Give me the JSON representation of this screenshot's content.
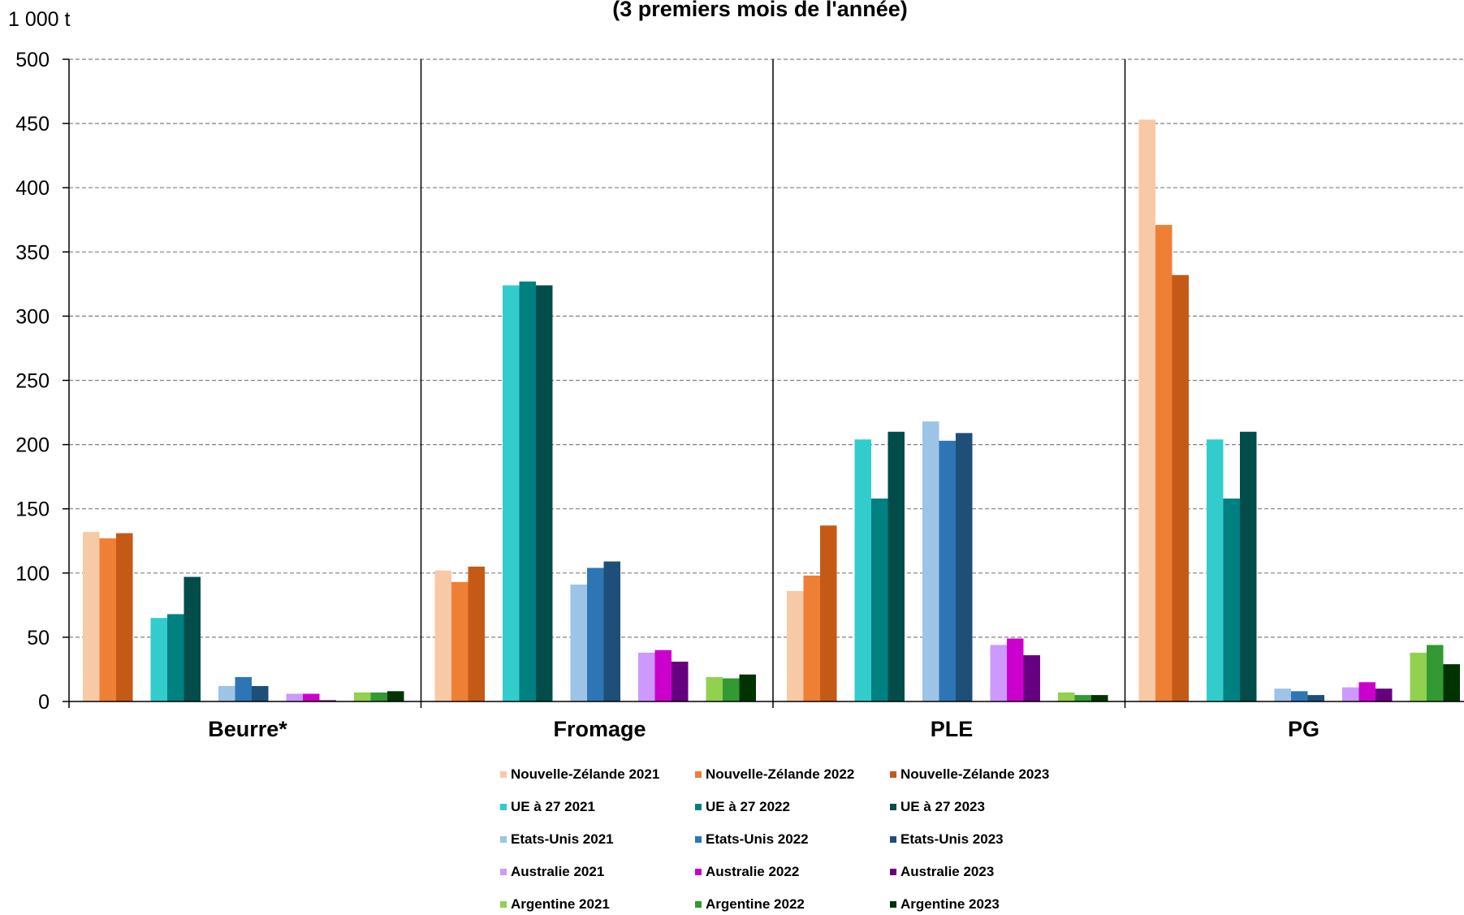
{
  "chart_data": {
    "type": "bar",
    "title": "(3 premiers mois de l'année)",
    "ylabel": "1 000 t",
    "xlabel": "",
    "ylim": [
      0,
      500
    ],
    "yticks": [
      0,
      50,
      100,
      150,
      200,
      250,
      300,
      350,
      400,
      450,
      500
    ],
    "grid": true,
    "legend_position": "bottom",
    "categories": [
      "Beurre*",
      "Fromage",
      "PLE",
      "PG"
    ],
    "series": [
      {
        "name": "Nouvelle-Zélande 2021",
        "color": "#F8C9A6",
        "values": [
          132,
          102,
          86,
          453
        ]
      },
      {
        "name": "Nouvelle-Zélande 2022",
        "color": "#EE7F35",
        "values": [
          127,
          93,
          98,
          371
        ]
      },
      {
        "name": "Nouvelle-Zélande 2023",
        "color": "#C55A16",
        "values": [
          131,
          105,
          137,
          332
        ]
      },
      {
        "name": "UE à 27 2021",
        "color": "#33CCCC",
        "values": [
          65,
          324,
          204,
          204
        ]
      },
      {
        "name": "UE à 27 2022",
        "color": "#008080",
        "values": [
          68,
          327,
          158,
          158
        ]
      },
      {
        "name": "UE à 27 2023",
        "color": "#024D4A",
        "values": [
          97,
          324,
          210,
          210
        ]
      },
      {
        "name": "Etats-Unis 2021",
        "color": "#9DC3E6",
        "values": [
          12,
          91,
          218,
          10
        ]
      },
      {
        "name": "Etats-Unis 2022",
        "color": "#2E75B6",
        "values": [
          19,
          104,
          203,
          8
        ]
      },
      {
        "name": "Etats-Unis 2023",
        "color": "#1F4E79",
        "values": [
          12,
          109,
          209,
          5
        ]
      },
      {
        "name": "Australie 2021",
        "color": "#CC99FF",
        "values": [
          6,
          38,
          44,
          11
        ]
      },
      {
        "name": "Australie 2022",
        "color": "#CC00CC",
        "values": [
          6,
          40,
          49,
          15
        ]
      },
      {
        "name": "Australie 2023",
        "color": "#660080",
        "values": [
          1,
          31,
          36,
          10
        ]
      },
      {
        "name": "Argentine 2021",
        "color": "#92D050",
        "values": [
          7,
          19,
          7,
          38
        ]
      },
      {
        "name": "Argentine 2022",
        "color": "#339933",
        "values": [
          7,
          18,
          5,
          44
        ]
      },
      {
        "name": "Argentine 2023",
        "color": "#003300",
        "values": [
          8,
          21,
          5,
          29
        ]
      }
    ]
  }
}
